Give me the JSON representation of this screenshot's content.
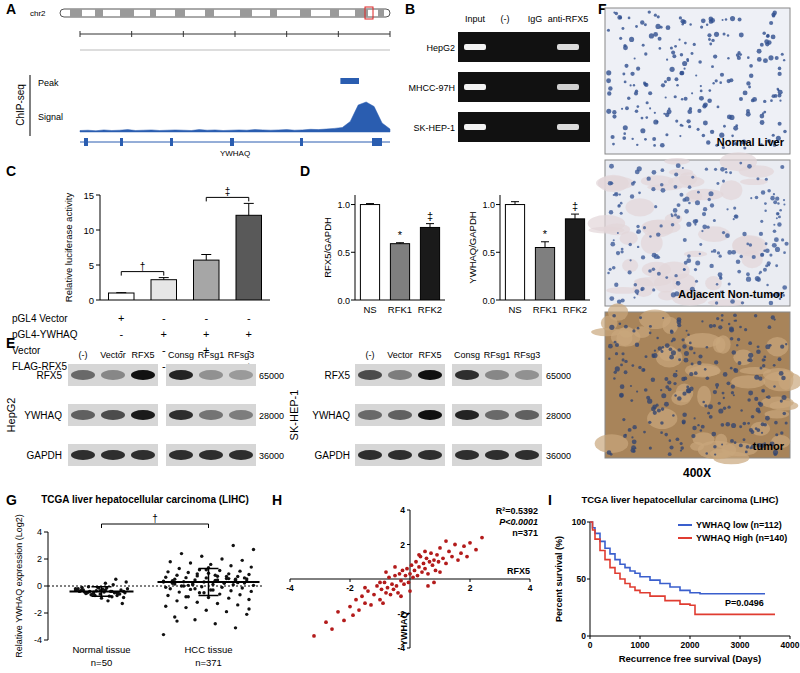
{
  "panel_labels": [
    "A",
    "B",
    "C",
    "D",
    "E",
    "F",
    "G",
    "H",
    "I"
  ],
  "panels": {
    "A": {
      "chromosome": "chr2",
      "gene": "YWHAQ",
      "track_group": "ChIP-seq",
      "tracks": [
        "Peak",
        "Signal"
      ],
      "peak": [
        0.84,
        0.9
      ],
      "signal": [
        0.05,
        0.06,
        0.04,
        0.07,
        0.05,
        0.06,
        0.08,
        0.05,
        0.06,
        0.07,
        0.05,
        0.06,
        0.07,
        0.06,
        0.05,
        0.08,
        0.06,
        0.07,
        0.05,
        0.06,
        0.07,
        0.06,
        0.08,
        0.07,
        0.06,
        0.07,
        0.08,
        0.06,
        0.07,
        0.09,
        0.08,
        0.1,
        0.12,
        0.15,
        0.35,
        0.9,
        1.0,
        0.85,
        0.3,
        0.1
      ]
    },
    "B": {
      "lanes": [
        "Input",
        "(-)",
        "IgG",
        "anti-RFX5"
      ],
      "rows": [
        "HepG2",
        "MHCC-97H",
        "SK-HEP-1"
      ],
      "bands": [
        [
          1,
          0,
          0,
          0.9
        ],
        [
          1,
          0,
          0,
          0.85
        ],
        [
          1,
          0,
          0,
          0.9
        ]
      ]
    },
    "E": {
      "proteins": [
        "RFX5",
        "YWHAQ",
        "GAPDH"
      ],
      "mw": [
        "65000",
        "28000",
        "36000"
      ],
      "blots": [
        {
          "cell_line": "HepG2",
          "groups": [
            {
              "lanes": [
                "(-)",
                "Vector",
                "RFX5"
              ],
              "intensity": [
                [
                  0.55,
                  0.4,
                  1.0
                ],
                [
                  0.6,
                  0.7,
                  0.95
                ],
                [
                  0.85,
                  0.85,
                  0.85
                ]
              ]
            },
            {
              "lanes": [
                "Consg",
                "RFsg1",
                "RFsg3"
              ],
              "intensity": [
                [
                  0.9,
                  0.35,
                  0.3
                ],
                [
                  0.85,
                  0.5,
                  0.45
                ],
                [
                  0.85,
                  0.85,
                  0.85
                ]
              ]
            }
          ]
        },
        {
          "cell_line": "SK-HEP-1",
          "groups": [
            {
              "lanes": [
                "(-)",
                "Vector",
                "RFX5"
              ],
              "intensity": [
                [
                  0.7,
                  0.45,
                  1.0
                ],
                [
                  0.55,
                  0.6,
                  1.0
                ],
                [
                  0.85,
                  0.85,
                  0.85
                ]
              ]
            },
            {
              "lanes": [
                "Consg",
                "RFsg1",
                "RFsg3"
              ],
              "intensity": [
                [
                  0.85,
                  0.4,
                  0.35
                ],
                [
                  0.9,
                  0.55,
                  0.6
                ],
                [
                  0.85,
                  0.85,
                  0.85
                ]
              ]
            }
          ]
        }
      ]
    },
    "F": {
      "images": [
        "Normal Liver",
        "Adjacent Non-tumor",
        "tumor"
      ],
      "magnification": "400X"
    }
  },
  "chart_data": [
    {
      "type": "bar",
      "y_label": "Relative luciferase activity",
      "values": [
        1,
        2.9,
        5.7,
        12.1
      ],
      "errors": [
        0.05,
        0.3,
        0.8,
        1.7
      ],
      "colors": [
        "#ffffff",
        "#e6e6e6",
        "#a6a6a6",
        "#595959"
      ],
      "ylim": [
        0,
        15
      ],
      "yticks": [
        0,
        5,
        10,
        15
      ],
      "conditions": {
        "rows": [
          "pGL4 Vector",
          "pGL4-YWHAQ",
          "Vector",
          "FLAG-RFX5"
        ],
        "signs": [
          [
            "+",
            "-",
            "-",
            "-"
          ],
          [
            "-",
            "+",
            "+",
            "+"
          ],
          [
            "-",
            "-",
            "+",
            "-"
          ],
          [
            "-",
            "-",
            "-",
            "+"
          ]
        ]
      },
      "brackets": [
        {
          "label": "†",
          "categories": [
            0,
            1
          ]
        },
        {
          "label": "‡",
          "categories": [
            2,
            3
          ]
        }
      ]
    },
    {
      "type": "bar",
      "y_label": "RFX5/GAPDH",
      "categories": [
        "NS",
        "RFK1",
        "RFK2"
      ],
      "values": [
        1.0,
        0.59,
        0.76
      ],
      "errors": [
        0.01,
        0.01,
        0.04
      ],
      "colors": [
        "#ffffff",
        "#7f7f7f",
        "#1a1a1a"
      ],
      "ylim": [
        0,
        1.1
      ],
      "yticks": [
        {
          "value": 0,
          "label": "0.0"
        },
        0.5,
        {
          "value": 1,
          "label": "1.0"
        }
      ],
      "annotations": [
        {
          "text": "*",
          "category": 1
        },
        {
          "text": "‡",
          "category": 2
        }
      ]
    },
    {
      "type": "bar",
      "y_label": "YWHAQ/GAPDH",
      "categories": [
        "NS",
        "RFK1",
        "RFK2"
      ],
      "values": [
        1.0,
        0.55,
        0.85
      ],
      "errors": [
        0.03,
        0.06,
        0.05
      ],
      "colors": [
        "#ffffff",
        "#7f7f7f",
        "#1a1a1a"
      ],
      "ylim": [
        0,
        1.1
      ],
      "yticks": [
        {
          "value": 0,
          "label": "0.0"
        },
        0.5,
        {
          "value": 1,
          "label": "1.0"
        }
      ],
      "annotations": [
        {
          "text": "*",
          "category": 1
        },
        {
          "text": "‡",
          "category": 2
        }
      ]
    },
    {
      "type": "dot",
      "title": "TCGA liver hepatocellular carcinoma (LIHC)",
      "y_label": "Relative YWHAQ expression (Log2)",
      "categories": [
        "Normal tissue",
        "HCC tissue"
      ],
      "n_labels": [
        "n=50",
        "n=371"
      ],
      "color": "#111111",
      "groups": [
        [
          -0.2,
          -0.5,
          -0.3,
          -0.6,
          -0.1,
          -0.4,
          -0.8,
          -0.35,
          -0.45,
          -0.25,
          -0.55,
          -0.15,
          -0.7,
          -0.3,
          -0.5,
          0.1,
          -0.9,
          -0.4,
          -0.2,
          -0.6,
          -1.1,
          -0.35,
          -0.45,
          0.3,
          -0.5,
          -0.25,
          -0.65,
          -0.4,
          -0.3,
          -0.75,
          -0.1,
          -0.55,
          -0.2,
          0.5,
          -0.45,
          -0.6,
          -0.35,
          -1.3,
          -0.4,
          -0.15,
          -0.5,
          -0.3,
          -0.7,
          0.2,
          -0.45,
          -0.25,
          -0.85,
          -0.4,
          -0.6,
          -0.05
        ],
        [
          -3.6,
          -3.1,
          -2.8,
          -2.5,
          -2.3,
          -2.1,
          -1.9,
          -1.8,
          -1.6,
          -1.5,
          -1.4,
          -1.3,
          -1.2,
          -1.1,
          -1.0,
          -0.9,
          -0.85,
          -0.8,
          -0.7,
          -0.65,
          -0.6,
          -0.5,
          -0.45,
          -0.4,
          -0.35,
          -0.3,
          -0.25,
          -0.2,
          -0.15,
          -0.1,
          -0.05,
          0.0,
          0.05,
          0.1,
          0.12,
          0.15,
          0.2,
          0.22,
          0.25,
          0.3,
          0.32,
          0.35,
          0.4,
          0.42,
          0.45,
          0.5,
          0.52,
          0.55,
          0.6,
          0.62,
          0.65,
          0.7,
          0.72,
          0.75,
          0.8,
          0.85,
          0.9,
          0.95,
          1.0,
          1.05,
          1.1,
          1.15,
          1.2,
          1.3,
          1.4,
          1.5,
          1.6,
          1.7,
          1.8,
          1.9,
          2.0,
          2.2,
          2.4,
          2.7,
          3.0,
          -0.3,
          0.1,
          0.4,
          0.6,
          0.2,
          -0.5,
          0.0,
          0.3,
          0.5,
          0.8,
          -0.2,
          0.15,
          0.35,
          0.7,
          1.2,
          -0.8,
          -0.1,
          0.25,
          0.45,
          0.9,
          -2.6,
          -1.7,
          0.55,
          1.35,
          0.05
        ]
      ],
      "means": [
        -0.4,
        0.3
      ],
      "sd": [
        0.35,
        1.0
      ],
      "reference_lines": [
        0
      ],
      "ylim": [
        -4,
        4
      ],
      "yticks": [
        -4,
        -2,
        0,
        2,
        4
      ],
      "brackets": [
        {
          "label": "†",
          "categories": [
            0,
            1
          ]
        }
      ]
    },
    {
      "type": "scatter",
      "x_label": "RFX5",
      "y_label": "YWHAQ",
      "color": "#b31b1b",
      "marker": "circle",
      "x": [
        -3.2,
        -2.8,
        -2.6,
        -2.4,
        -2.2,
        -2.0,
        -1.9,
        -1.8,
        -1.7,
        -1.6,
        -1.5,
        -1.4,
        -1.3,
        -1.2,
        -1.1,
        -1.0,
        -0.95,
        -0.9,
        -0.85,
        -0.8,
        -0.75,
        -0.7,
        -0.65,
        -0.6,
        -0.55,
        -0.5,
        -0.45,
        -0.4,
        -0.35,
        -0.3,
        -0.25,
        -0.2,
        -0.15,
        -0.1,
        -0.05,
        0.0,
        0.05,
        0.1,
        0.15,
        0.2,
        0.25,
        0.3,
        0.35,
        0.4,
        0.45,
        0.5,
        0.55,
        0.6,
        0.65,
        0.7,
        0.75,
        0.8,
        0.85,
        0.9,
        0.95,
        1.0,
        1.1,
        1.2,
        1.3,
        1.4,
        1.5,
        1.6,
        1.7,
        1.8,
        1.9,
        2.0,
        2.2,
        2.4,
        -1.0,
        -0.5,
        0.0,
        0.5,
        1.0,
        -0.3,
        0.3,
        0.8,
        -0.8,
        1.2,
        -1.5,
        0.6
      ],
      "values": [
        -3.3,
        -2.5,
        -2.9,
        -1.9,
        -2.4,
        -1.6,
        -2.1,
        -1.2,
        -1.8,
        -1.0,
        -1.4,
        -0.7,
        -1.5,
        -0.9,
        -0.4,
        -1.2,
        -0.6,
        -1.4,
        -0.2,
        -0.8,
        -0.5,
        0.1,
        -0.9,
        -0.3,
        -0.6,
        0.2,
        -0.4,
        -0.8,
        0.3,
        -0.1,
        0.5,
        -0.3,
        0.2,
        0.6,
        -0.2,
        0.3,
        0.8,
        0.1,
        0.5,
        1.0,
        0.2,
        0.7,
        1.3,
        0.4,
        0.9,
        0.6,
        1.2,
        0.3,
        1.0,
        1.5,
        0.8,
        1.1,
        0.5,
        1.4,
        1.0,
        1.8,
        1.2,
        0.9,
        1.6,
        1.3,
        2.0,
        1.1,
        1.5,
        1.9,
        1.3,
        2.1,
        1.7,
        2.4,
        -0.2,
        0.7,
        -0.7,
        1.6,
        0.4,
        -1.0,
        1.4,
        -0.2,
        0.4,
        2.2,
        -0.5,
        -0.4
      ],
      "xlim": [
        -4,
        4
      ],
      "ylim": [
        -4,
        4
      ],
      "xticks": [
        -4,
        -2,
        2,
        4
      ],
      "yticks": [
        -4,
        -2,
        2,
        4
      ],
      "annotations": [
        "R²=0.5392",
        "P<0.0001",
        "n=371"
      ]
    },
    {
      "type": "line",
      "line_style": "step",
      "title": "TCGA liver hepatocellular carcinoma (LIHC)",
      "x_label": "Recurrence free survival (Days)",
      "y_label": "Percent survival (%)",
      "series": [
        {
          "name": "YWHAQ low (n=112)",
          "color": "#3a5fcd",
          "x": [
            0,
            50,
            100,
            200,
            300,
            400,
            500,
            600,
            700,
            800,
            900,
            1000,
            1200,
            1400,
            1600,
            1800,
            2000,
            2200,
            3500
          ],
          "values": [
            100,
            95,
            90,
            83,
            77,
            72,
            67,
            63,
            60,
            57,
            55,
            52,
            49,
            46,
            43,
            40,
            38,
            37,
            37
          ]
        },
        {
          "name": "YWHAQ High (n=140)",
          "color": "#e03c31",
          "x": [
            0,
            50,
            100,
            200,
            300,
            400,
            500,
            600,
            700,
            800,
            900,
            1000,
            1200,
            1500,
            1800,
            2000,
            2100,
            3700
          ],
          "values": [
            100,
            93,
            85,
            75,
            67,
            60,
            55,
            50,
            46,
            43,
            40,
            38,
            35,
            31,
            28,
            27,
            19,
            19
          ]
        }
      ],
      "xlim": [
        0,
        4000
      ],
      "ylim": [
        0,
        100
      ],
      "xticks": [
        0,
        1000,
        2000,
        3000,
        4000
      ],
      "yticks": [
        0,
        50,
        100
      ],
      "legend": "upper right",
      "annotations": [
        "P=0.0496"
      ]
    }
  ]
}
